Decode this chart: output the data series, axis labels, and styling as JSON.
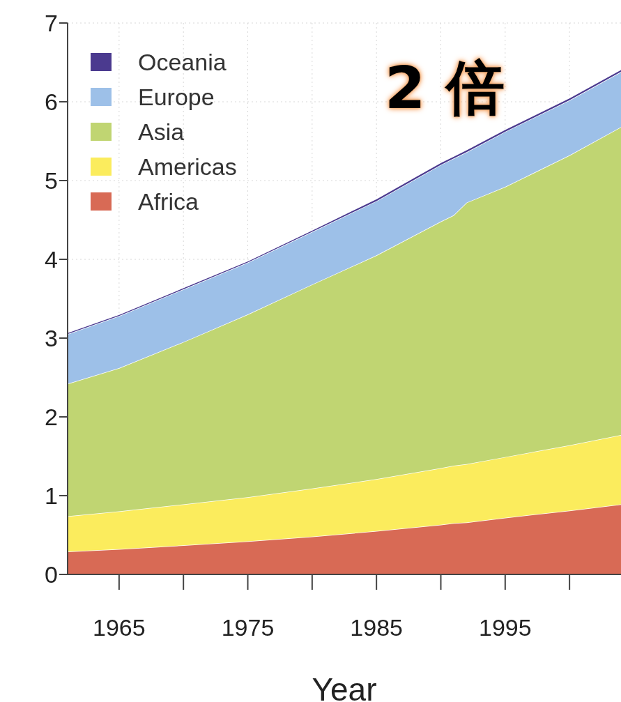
{
  "chart_data": {
    "type": "area",
    "stacked": true,
    "xlabel": "Year",
    "annotations": [
      "2 倍"
    ],
    "x": [
      1961,
      1965,
      1970,
      1975,
      1980,
      1985,
      1990,
      1991,
      1992,
      1995,
      2000,
      2004
    ],
    "series": [
      {
        "name": "Africa",
        "color": "#d86a55",
        "values": [
          0.29,
          0.32,
          0.37,
          0.42,
          0.48,
          0.55,
          0.63,
          0.65,
          0.66,
          0.72,
          0.81,
          0.89
        ]
      },
      {
        "name": "Americas",
        "color": "#fbec5d",
        "values": [
          0.45,
          0.48,
          0.52,
          0.56,
          0.61,
          0.66,
          0.72,
          0.73,
          0.74,
          0.77,
          0.83,
          0.88
        ]
      },
      {
        "name": "Asia",
        "color": "#c0d572",
        "values": [
          1.68,
          1.82,
          2.06,
          2.32,
          2.59,
          2.84,
          3.13,
          3.18,
          3.32,
          3.43,
          3.68,
          3.91
        ]
      },
      {
        "name": "Europe",
        "color": "#9dc0e8",
        "values": [
          0.63,
          0.66,
          0.67,
          0.66,
          0.67,
          0.69,
          0.72,
          0.72,
          0.64,
          0.7,
          0.7,
          0.7
        ]
      },
      {
        "name": "Oceania",
        "color": "#4b3a8f",
        "values": [
          0.02,
          0.02,
          0.02,
          0.02,
          0.02,
          0.03,
          0.03,
          0.03,
          0.03,
          0.03,
          0.03,
          0.03
        ]
      }
    ],
    "xlim": [
      1961,
      2004
    ],
    "xticks": [
      {
        "value": 1965,
        "label": "1965"
      },
      {
        "value": 1970,
        "label": null
      },
      {
        "value": 1975,
        "label": "1975"
      },
      {
        "value": 1980,
        "label": null
      },
      {
        "value": 1985,
        "label": "1985"
      },
      {
        "value": 1990,
        "label": null
      },
      {
        "value": 1995,
        "label": "1995"
      },
      {
        "value": 2000,
        "label": null
      }
    ],
    "ylim": [
      0,
      7
    ],
    "yticks": [
      0,
      1,
      2,
      3,
      4,
      5,
      6,
      7
    ],
    "grid": true,
    "legend": "top left"
  }
}
